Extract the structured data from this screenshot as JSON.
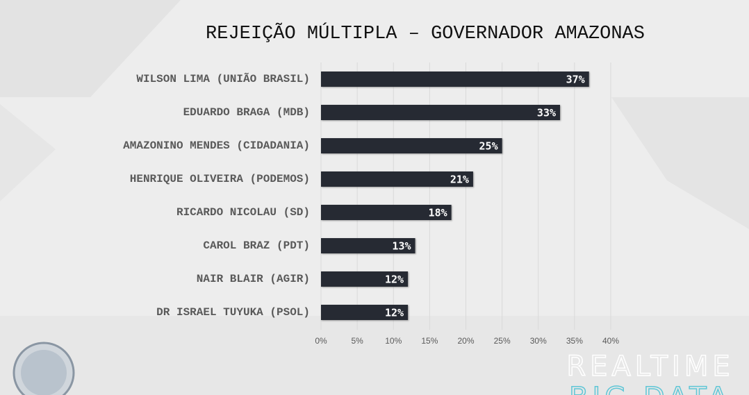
{
  "chart_data": {
    "type": "bar",
    "orientation": "horizontal",
    "title": "REJEIÇÃO MÚLTIPLA – GOVERNADOR AMAZONAS",
    "categories": [
      "WILSON LIMA (UNIÃO BRASIL)",
      "EDUARDO BRAGA (MDB)",
      "AMAZONINO MENDES (CIDADANIA)",
      "HENRIQUE OLIVEIRA (PODEMOS)",
      "RICARDO NICOLAU (SD)",
      "CAROL BRAZ (PDT)",
      "NAIR BLAIR (AGIR)",
      "DR ISRAEL TUYUKA (PSOL)"
    ],
    "values": [
      37,
      33,
      25,
      21,
      18,
      13,
      12,
      12
    ],
    "value_labels": [
      "37%",
      "33%",
      "25%",
      "21%",
      "18%",
      "13%",
      "12%",
      "12%"
    ],
    "color": "#262a33",
    "xlim": [
      0,
      40
    ],
    "xticks": [
      {
        "value": 0,
        "label": "0%"
      },
      {
        "value": 5,
        "label": "5%"
      },
      {
        "value": 10,
        "label": "10%"
      },
      {
        "value": 15,
        "label": "15%"
      },
      {
        "value": 20,
        "label": "20%"
      },
      {
        "value": 25,
        "label": "25%"
      },
      {
        "value": 30,
        "label": "30%"
      },
      {
        "value": 35,
        "label": "35%"
      },
      {
        "value": 40,
        "label": "40%"
      }
    ],
    "grid": true,
    "brand": [
      "REALTIME",
      "BIG DATA"
    ]
  }
}
